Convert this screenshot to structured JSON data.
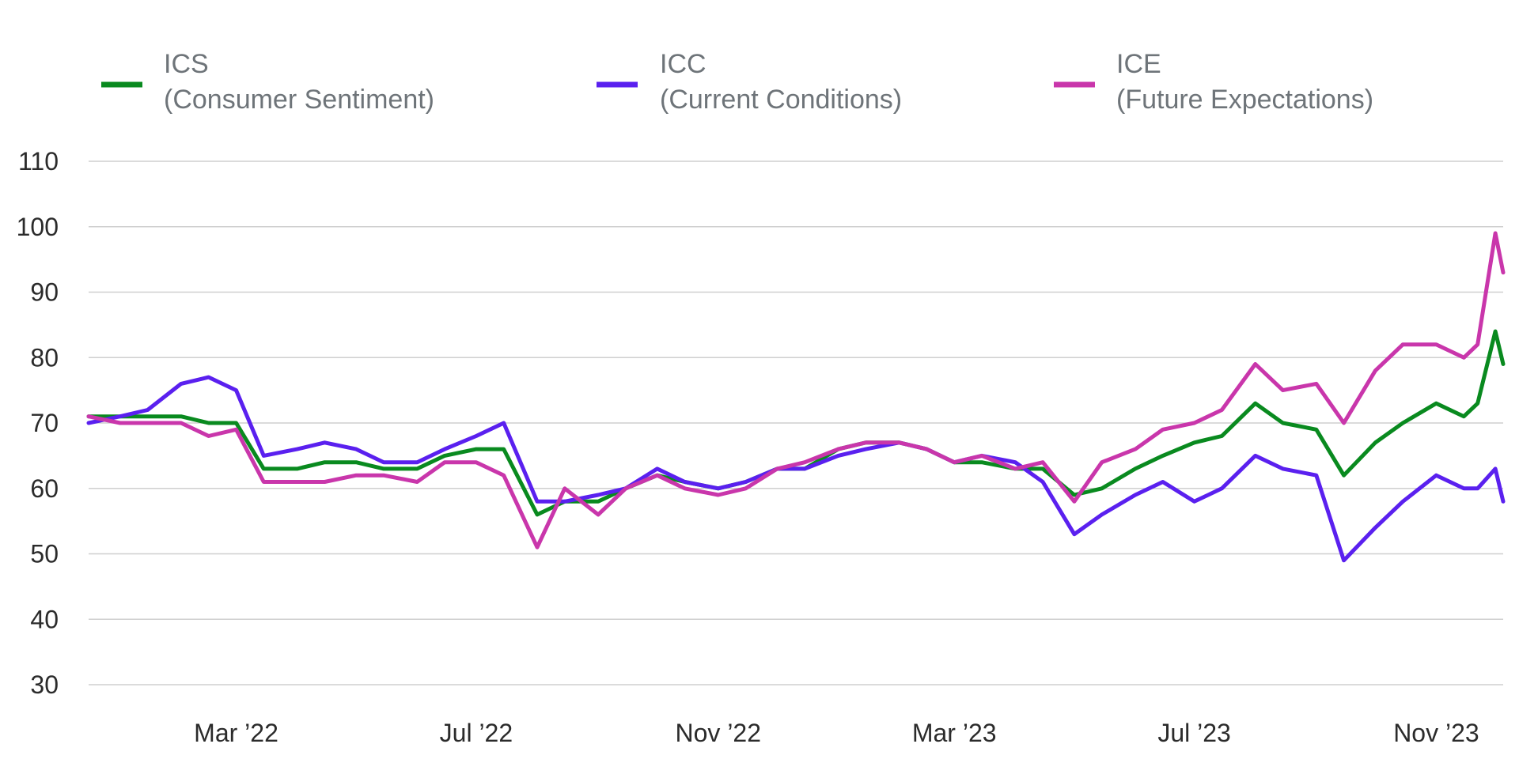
{
  "chart_data": {
    "type": "line",
    "title": "",
    "xlabel": "",
    "ylabel": "",
    "ylim": [
      30,
      110
    ],
    "yticks": [
      30,
      40,
      50,
      60,
      70,
      80,
      90,
      100,
      110
    ],
    "xlim": [
      "2021-12-16",
      "2023-12-05"
    ],
    "xticks": [
      {
        "label": "Mar ’22",
        "date": "2022-03-01"
      },
      {
        "label": "Jul ’22",
        "date": "2022-07-01"
      },
      {
        "label": "Nov ’22",
        "date": "2022-11-01"
      },
      {
        "label": "Mar ’23",
        "date": "2023-03-01"
      },
      {
        "label": "Jul ’23",
        "date": "2023-07-01"
      },
      {
        "label": "Nov ’23",
        "date": "2023-11-01"
      }
    ],
    "grid": true,
    "legend_position": "top",
    "series": [
      {
        "name": "ICS",
        "legend_label": "ICS",
        "legend_sublabel": "(Consumer Sentiment)",
        "color": "#098a1f",
        "points": [
          [
            "2021-12-16",
            71
          ],
          [
            "2022-01-01",
            71
          ],
          [
            "2022-01-15",
            71
          ],
          [
            "2022-02-01",
            71
          ],
          [
            "2022-02-15",
            70
          ],
          [
            "2022-03-01",
            70
          ],
          [
            "2022-03-15",
            63
          ],
          [
            "2022-04-01",
            63
          ],
          [
            "2022-04-15",
            64
          ],
          [
            "2022-05-01",
            64
          ],
          [
            "2022-05-15",
            63
          ],
          [
            "2022-06-01",
            63
          ],
          [
            "2022-06-15",
            65
          ],
          [
            "2022-07-01",
            66
          ],
          [
            "2022-07-15",
            66
          ],
          [
            "2022-08-01",
            56
          ],
          [
            "2022-08-15",
            58
          ],
          [
            "2022-09-01",
            58
          ],
          [
            "2022-09-15",
            60
          ],
          [
            "2022-10-01",
            62
          ],
          [
            "2022-10-15",
            61
          ],
          [
            "2022-11-01",
            60
          ],
          [
            "2022-11-15",
            61
          ],
          [
            "2022-12-01",
            63
          ],
          [
            "2022-12-15",
            63
          ],
          [
            "2023-01-01",
            66
          ],
          [
            "2023-01-15",
            67
          ],
          [
            "2023-02-01",
            67
          ],
          [
            "2023-02-15",
            66
          ],
          [
            "2023-03-01",
            64
          ],
          [
            "2023-03-15",
            64
          ],
          [
            "2023-04-01",
            63
          ],
          [
            "2023-04-15",
            63
          ],
          [
            "2023-05-01",
            59
          ],
          [
            "2023-05-15",
            60
          ],
          [
            "2023-06-01",
            63
          ],
          [
            "2023-06-15",
            65
          ],
          [
            "2023-07-01",
            67
          ],
          [
            "2023-07-15",
            68
          ],
          [
            "2023-08-01",
            73
          ],
          [
            "2023-08-15",
            70
          ],
          [
            "2023-09-01",
            69
          ],
          [
            "2023-09-15",
            62
          ],
          [
            "2023-10-01",
            67
          ],
          [
            "2023-10-15",
            70
          ],
          [
            "2023-11-01",
            73
          ],
          [
            "2023-11-15",
            71
          ],
          [
            "2023-11-22",
            73
          ],
          [
            "2023-12-01",
            84
          ],
          [
            "2023-12-05",
            79
          ]
        ]
      },
      {
        "name": "ICC",
        "legend_label": "ICC",
        "legend_sublabel": "(Current Conditions)",
        "color": "#5a20ef",
        "points": [
          [
            "2021-12-16",
            70
          ],
          [
            "2022-01-01",
            71
          ],
          [
            "2022-01-15",
            72
          ],
          [
            "2022-02-01",
            76
          ],
          [
            "2022-02-15",
            77
          ],
          [
            "2022-03-01",
            75
          ],
          [
            "2022-03-15",
            65
          ],
          [
            "2022-04-01",
            66
          ],
          [
            "2022-04-15",
            67
          ],
          [
            "2022-05-01",
            66
          ],
          [
            "2022-05-15",
            64
          ],
          [
            "2022-06-01",
            64
          ],
          [
            "2022-06-15",
            66
          ],
          [
            "2022-07-01",
            68
          ],
          [
            "2022-07-15",
            70
          ],
          [
            "2022-08-01",
            58
          ],
          [
            "2022-08-15",
            58
          ],
          [
            "2022-09-01",
            59
          ],
          [
            "2022-09-15",
            60
          ],
          [
            "2022-10-01",
            63
          ],
          [
            "2022-10-15",
            61
          ],
          [
            "2022-11-01",
            60
          ],
          [
            "2022-11-15",
            61
          ],
          [
            "2022-12-01",
            63
          ],
          [
            "2022-12-15",
            63
          ],
          [
            "2023-01-01",
            65
          ],
          [
            "2023-01-15",
            66
          ],
          [
            "2023-02-01",
            67
          ],
          [
            "2023-02-15",
            66
          ],
          [
            "2023-03-01",
            64
          ],
          [
            "2023-03-15",
            65
          ],
          [
            "2023-04-01",
            64
          ],
          [
            "2023-04-15",
            61
          ],
          [
            "2023-05-01",
            53
          ],
          [
            "2023-05-15",
            56
          ],
          [
            "2023-06-01",
            59
          ],
          [
            "2023-06-15",
            61
          ],
          [
            "2023-07-01",
            58
          ],
          [
            "2023-07-15",
            60
          ],
          [
            "2023-08-01",
            65
          ],
          [
            "2023-08-15",
            63
          ],
          [
            "2023-09-01",
            62
          ],
          [
            "2023-09-15",
            49
          ],
          [
            "2023-10-01",
            54
          ],
          [
            "2023-10-15",
            58
          ],
          [
            "2023-11-01",
            62
          ],
          [
            "2023-11-15",
            60
          ],
          [
            "2023-11-22",
            60
          ],
          [
            "2023-12-01",
            63
          ],
          [
            "2023-12-05",
            58
          ]
        ]
      },
      {
        "name": "ICE",
        "legend_label": "ICE",
        "legend_sublabel": "(Future Expectations)",
        "color": "#c936ab",
        "points": [
          [
            "2021-12-16",
            71
          ],
          [
            "2022-01-01",
            70
          ],
          [
            "2022-01-15",
            70
          ],
          [
            "2022-02-01",
            70
          ],
          [
            "2022-02-15",
            68
          ],
          [
            "2022-03-01",
            69
          ],
          [
            "2022-03-15",
            61
          ],
          [
            "2022-04-01",
            61
          ],
          [
            "2022-04-15",
            61
          ],
          [
            "2022-05-01",
            62
          ],
          [
            "2022-05-15",
            62
          ],
          [
            "2022-06-01",
            61
          ],
          [
            "2022-06-15",
            64
          ],
          [
            "2022-07-01",
            64
          ],
          [
            "2022-07-15",
            62
          ],
          [
            "2022-08-01",
            51
          ],
          [
            "2022-08-15",
            60
          ],
          [
            "2022-09-01",
            56
          ],
          [
            "2022-09-15",
            60
          ],
          [
            "2022-10-01",
            62
          ],
          [
            "2022-10-15",
            60
          ],
          [
            "2022-11-01",
            59
          ],
          [
            "2022-11-15",
            60
          ],
          [
            "2022-12-01",
            63
          ],
          [
            "2022-12-15",
            64
          ],
          [
            "2023-01-01",
            66
          ],
          [
            "2023-01-15",
            67
          ],
          [
            "2023-02-01",
            67
          ],
          [
            "2023-02-15",
            66
          ],
          [
            "2023-03-01",
            64
          ],
          [
            "2023-03-15",
            65
          ],
          [
            "2023-04-01",
            63
          ],
          [
            "2023-04-15",
            64
          ],
          [
            "2023-05-01",
            58
          ],
          [
            "2023-05-15",
            64
          ],
          [
            "2023-06-01",
            66
          ],
          [
            "2023-06-15",
            69
          ],
          [
            "2023-07-01",
            70
          ],
          [
            "2023-07-15",
            72
          ],
          [
            "2023-08-01",
            79
          ],
          [
            "2023-08-15",
            75
          ],
          [
            "2023-09-01",
            76
          ],
          [
            "2023-09-15",
            70
          ],
          [
            "2023-10-01",
            78
          ],
          [
            "2023-10-15",
            82
          ],
          [
            "2023-11-01",
            82
          ],
          [
            "2023-11-15",
            80
          ],
          [
            "2023-11-22",
            82
          ],
          [
            "2023-12-01",
            99
          ],
          [
            "2023-12-05",
            93
          ]
        ]
      }
    ]
  }
}
